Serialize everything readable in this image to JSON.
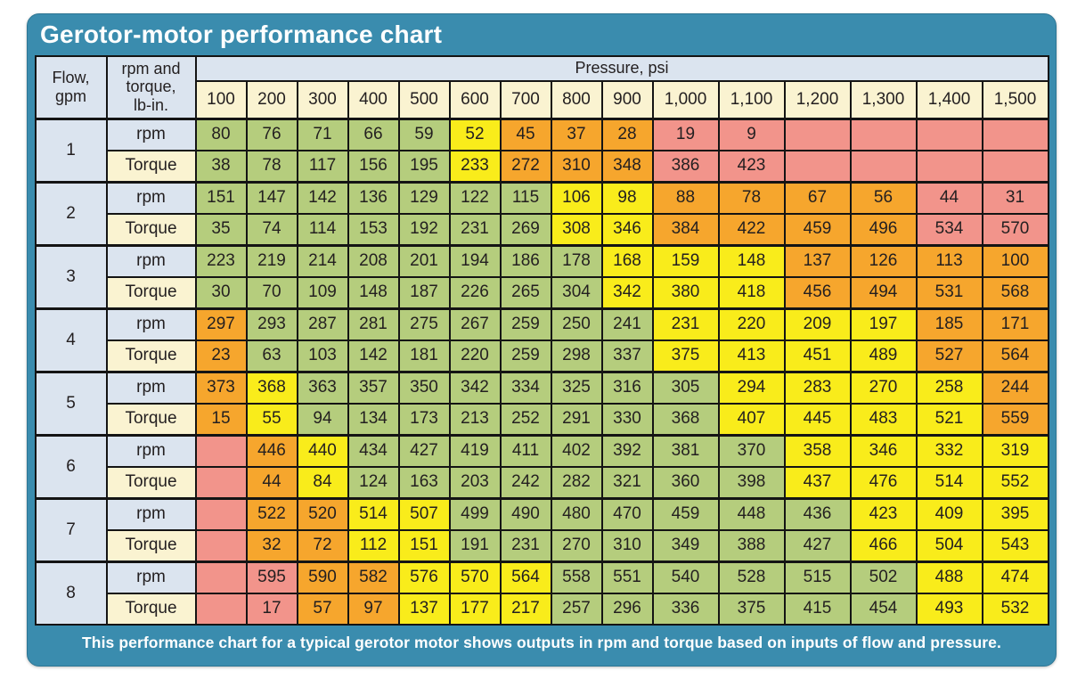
{
  "title": "Gerotor-motor performance chart",
  "caption": "This performance chart for a typical gerotor motor shows outputs in rpm and torque based on inputs of flow and pressure.",
  "palette": {
    "panel_teal": "#3a8cae",
    "header_blue": "#dbe4ef",
    "header_cream": "#faf3d1",
    "g": "#b5cd7d",
    "y": "#f9ec1b",
    "o": "#f6a62d",
    "r": "#f2948b",
    "border": "#141414",
    "text_dark": "#231f20"
  },
  "chart_data": {
    "type": "table",
    "title": "Gerotor-motor performance chart",
    "corner_header": "Flow,\ngpm",
    "row_unit_header": "rpm and\ntorque,\nlb-in.",
    "pressure_band_label": "Pressure, psi",
    "pressure_columns": [
      "100",
      "200",
      "300",
      "400",
      "500",
      "600",
      "700",
      "800",
      "900",
      "1,000",
      "1,100",
      "1,200",
      "1,300",
      "1,400",
      "1,500"
    ],
    "rpm_label": "rpm",
    "torque_label": "Torque",
    "color_codes": {
      "g": "green",
      "y": "yellow",
      "o": "orange",
      "r": "pink"
    },
    "rows": [
      {
        "flow": "1",
        "rpm": [
          "80",
          "76",
          "71",
          "66",
          "59",
          "52",
          "45",
          "37",
          "28",
          "19",
          "9",
          "",
          "",
          "",
          ""
        ],
        "rpm_colors": [
          "g",
          "g",
          "g",
          "g",
          "g",
          "y",
          "o",
          "o",
          "o",
          "r",
          "r",
          "r",
          "r",
          "r",
          "r"
        ],
        "torque": [
          "38",
          "78",
          "117",
          "156",
          "195",
          "233",
          "272",
          "310",
          "348",
          "386",
          "423",
          "",
          "",
          "",
          ""
        ],
        "torque_colors": [
          "g",
          "g",
          "g",
          "g",
          "g",
          "y",
          "o",
          "o",
          "o",
          "r",
          "r",
          "r",
          "r",
          "r",
          "r"
        ]
      },
      {
        "flow": "2",
        "rpm": [
          "151",
          "147",
          "142",
          "136",
          "129",
          "122",
          "115",
          "106",
          "98",
          "88",
          "78",
          "67",
          "56",
          "44",
          "31"
        ],
        "rpm_colors": [
          "g",
          "g",
          "g",
          "g",
          "g",
          "g",
          "g",
          "y",
          "y",
          "o",
          "o",
          "o",
          "o",
          "r",
          "r"
        ],
        "torque": [
          "35",
          "74",
          "114",
          "153",
          "192",
          "231",
          "269",
          "308",
          "346",
          "384",
          "422",
          "459",
          "496",
          "534",
          "570"
        ],
        "torque_colors": [
          "g",
          "g",
          "g",
          "g",
          "g",
          "g",
          "g",
          "y",
          "y",
          "o",
          "o",
          "o",
          "o",
          "r",
          "r"
        ]
      },
      {
        "flow": "3",
        "rpm": [
          "223",
          "219",
          "214",
          "208",
          "201",
          "194",
          "186",
          "178",
          "168",
          "159",
          "148",
          "137",
          "126",
          "113",
          "100"
        ],
        "rpm_colors": [
          "g",
          "g",
          "g",
          "g",
          "g",
          "g",
          "g",
          "g",
          "y",
          "y",
          "y",
          "o",
          "o",
          "o",
          "o"
        ],
        "torque": [
          "30",
          "70",
          "109",
          "148",
          "187",
          "226",
          "265",
          "304",
          "342",
          "380",
          "418",
          "456",
          "494",
          "531",
          "568"
        ],
        "torque_colors": [
          "g",
          "g",
          "g",
          "g",
          "g",
          "g",
          "g",
          "g",
          "y",
          "y",
          "y",
          "o",
          "o",
          "o",
          "o"
        ]
      },
      {
        "flow": "4",
        "rpm": [
          "297",
          "293",
          "287",
          "281",
          "275",
          "267",
          "259",
          "250",
          "241",
          "231",
          "220",
          "209",
          "197",
          "185",
          "171"
        ],
        "rpm_colors": [
          "o",
          "g",
          "g",
          "g",
          "g",
          "g",
          "g",
          "g",
          "g",
          "y",
          "y",
          "y",
          "y",
          "o",
          "o"
        ],
        "torque": [
          "23",
          "63",
          "103",
          "142",
          "181",
          "220",
          "259",
          "298",
          "337",
          "375",
          "413",
          "451",
          "489",
          "527",
          "564"
        ],
        "torque_colors": [
          "o",
          "g",
          "g",
          "g",
          "g",
          "g",
          "g",
          "g",
          "g",
          "y",
          "y",
          "y",
          "y",
          "o",
          "o"
        ]
      },
      {
        "flow": "5",
        "rpm": [
          "373",
          "368",
          "363",
          "357",
          "350",
          "342",
          "334",
          "325",
          "316",
          "305",
          "294",
          "283",
          "270",
          "258",
          "244"
        ],
        "rpm_colors": [
          "o",
          "y",
          "g",
          "g",
          "g",
          "g",
          "g",
          "g",
          "g",
          "g",
          "y",
          "y",
          "y",
          "y",
          "o"
        ],
        "torque": [
          "15",
          "55",
          "94",
          "134",
          "173",
          "213",
          "252",
          "291",
          "330",
          "368",
          "407",
          "445",
          "483",
          "521",
          "559"
        ],
        "torque_colors": [
          "o",
          "y",
          "g",
          "g",
          "g",
          "g",
          "g",
          "g",
          "g",
          "g",
          "y",
          "y",
          "y",
          "y",
          "o"
        ]
      },
      {
        "flow": "6",
        "rpm": [
          "",
          "446",
          "440",
          "434",
          "427",
          "419",
          "411",
          "402",
          "392",
          "381",
          "370",
          "358",
          "346",
          "332",
          "319"
        ],
        "rpm_colors": [
          "r",
          "o",
          "y",
          "g",
          "g",
          "g",
          "g",
          "g",
          "g",
          "g",
          "g",
          "y",
          "y",
          "y",
          "y"
        ],
        "torque": [
          "",
          "44",
          "84",
          "124",
          "163",
          "203",
          "242",
          "282",
          "321",
          "360",
          "398",
          "437",
          "476",
          "514",
          "552"
        ],
        "torque_colors": [
          "r",
          "o",
          "y",
          "g",
          "g",
          "g",
          "g",
          "g",
          "g",
          "g",
          "g",
          "y",
          "y",
          "y",
          "y"
        ]
      },
      {
        "flow": "7",
        "rpm": [
          "",
          "522",
          "520",
          "514",
          "507",
          "499",
          "490",
          "480",
          "470",
          "459",
          "448",
          "436",
          "423",
          "409",
          "395"
        ],
        "rpm_colors": [
          "r",
          "o",
          "o",
          "y",
          "y",
          "g",
          "g",
          "g",
          "g",
          "g",
          "g",
          "g",
          "y",
          "y",
          "y"
        ],
        "torque": [
          "",
          "32",
          "72",
          "112",
          "151",
          "191",
          "231",
          "270",
          "310",
          "349",
          "388",
          "427",
          "466",
          "504",
          "543"
        ],
        "torque_colors": [
          "r",
          "o",
          "o",
          "y",
          "y",
          "g",
          "g",
          "g",
          "g",
          "g",
          "g",
          "g",
          "y",
          "y",
          "y"
        ]
      },
      {
        "flow": "8",
        "rpm": [
          "",
          "595",
          "590",
          "582",
          "576",
          "570",
          "564",
          "558",
          "551",
          "540",
          "528",
          "515",
          "502",
          "488",
          "474"
        ],
        "rpm_colors": [
          "r",
          "r",
          "o",
          "o",
          "y",
          "y",
          "y",
          "g",
          "g",
          "g",
          "g",
          "g",
          "g",
          "y",
          "y"
        ],
        "torque": [
          "",
          "17",
          "57",
          "97",
          "137",
          "177",
          "217",
          "257",
          "296",
          "336",
          "375",
          "415",
          "454",
          "493",
          "532"
        ],
        "torque_colors": [
          "r",
          "r",
          "o",
          "o",
          "y",
          "y",
          "y",
          "g",
          "g",
          "g",
          "g",
          "g",
          "g",
          "y",
          "y"
        ]
      }
    ],
    "layout": {
      "col_width_flow": 80,
      "col_width_unit": 100,
      "col_width_narrow": 57,
      "col_width_wide": 74,
      "narrow_column_count": 9,
      "wide_column_count": 6
    }
  }
}
